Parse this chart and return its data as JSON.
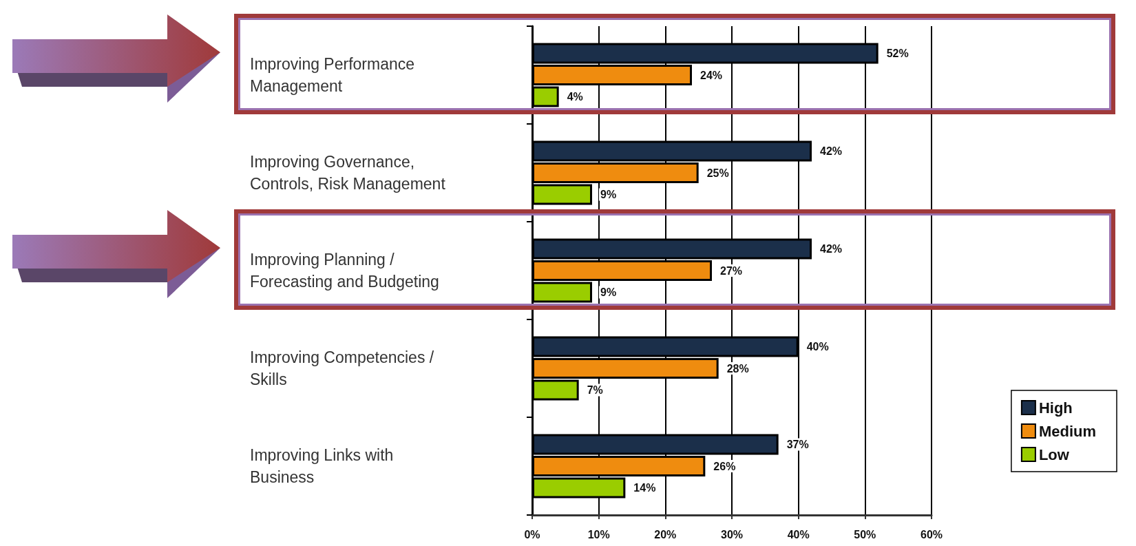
{
  "chart_data": {
    "type": "bar",
    "orientation": "horizontal",
    "categories": [
      "Improving Performance Management",
      "Improving Governance, Controls, Risk Management",
      "Improving Planning / Forecasting and Budgeting",
      "Improving Competencies / Skills",
      "Improving Links with Business"
    ],
    "series": [
      {
        "name": "High",
        "color": "#1b2f4a",
        "values": [
          52,
          42,
          42,
          40,
          37
        ],
        "value_labels": [
          "52%",
          "42%",
          "42%",
          "40%",
          "37%"
        ]
      },
      {
        "name": "Medium",
        "color": "#ef8c0f",
        "values": [
          24,
          25,
          27,
          28,
          26
        ],
        "value_labels": [
          "24%",
          "25%",
          "27%",
          "28%",
          "26%"
        ]
      },
      {
        "name": "Low",
        "color": "#9acd00",
        "values": [
          4,
          9,
          9,
          7,
          14
        ],
        "value_labels": [
          "4%",
          "9%",
          "9%",
          "7%",
          "14%"
        ]
      }
    ],
    "xlim": [
      0,
      60
    ],
    "xticks": [
      {
        "value": 0,
        "label": "0%"
      },
      {
        "value": 10,
        "label": "10%"
      },
      {
        "value": 20,
        "label": "20%"
      },
      {
        "value": 30,
        "label": "30%"
      },
      {
        "value": 40,
        "label": "40%"
      },
      {
        "value": 50,
        "label": "50%"
      },
      {
        "value": 60,
        "label": "60%"
      }
    ],
    "grid": "x",
    "legend": "bottom right"
  }
}
